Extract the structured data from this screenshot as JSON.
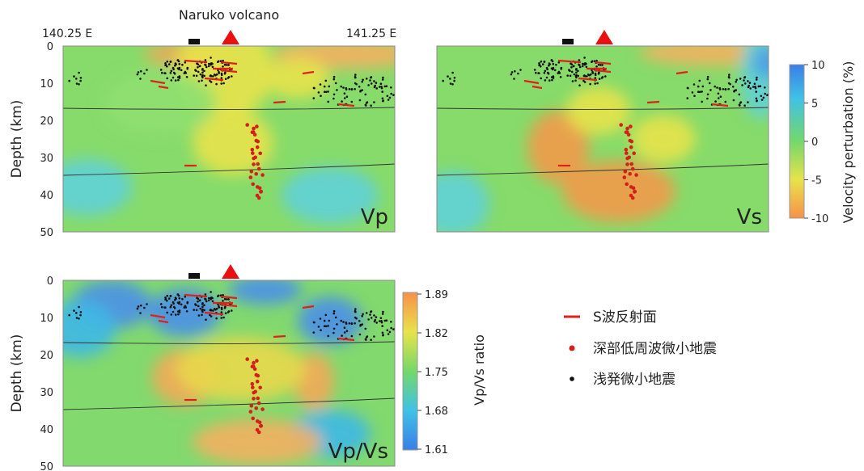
{
  "header": {
    "volcano_label": "Naruko volcano",
    "lon_left": "140.25 E",
    "lon_right": "141.25 E"
  },
  "axes": {
    "ylabel": "Depth (km)",
    "depth_ticks": [
      "0",
      "10",
      "20",
      "30",
      "40",
      "50"
    ]
  },
  "panels": [
    {
      "label": "Vp"
    },
    {
      "label": "Vs"
    },
    {
      "label": "Vp/Vs"
    }
  ],
  "colorbar_velocity": {
    "label": "Velocity perturbation (%)",
    "ticks": [
      "10",
      "5",
      "0",
      "-5",
      "-10"
    ]
  },
  "colorbar_ratio": {
    "label": "Vp/Vs ratio",
    "ticks": [
      "1.89",
      "1.82",
      "1.75",
      "1.68",
      "1.61"
    ]
  },
  "legend": {
    "items": [
      {
        "label": "S波反射面",
        "color": "#e0201a"
      },
      {
        "label": "深部低周波微小地震",
        "color": "#d42018"
      },
      {
        "label": "浅発微小地震",
        "color": "#111111"
      }
    ]
  },
  "colors": {
    "red": "#e0201a",
    "green": "#7fd86a",
    "blue": "#3c8ce6",
    "orange": "#f5a04a"
  }
}
